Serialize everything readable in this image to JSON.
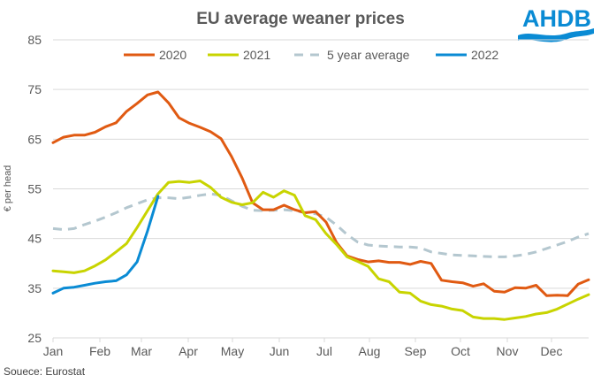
{
  "chart_data": {
    "type": "line",
    "title": "EU average weaner prices",
    "xlabel": "",
    "ylabel": "€ per head",
    "source": "Souece: Eurostat",
    "logo": "AHDB",
    "ylim": [
      25,
      85
    ],
    "yticks": [
      "25",
      "35",
      "45",
      "55",
      "65",
      "75",
      "85"
    ],
    "ytick_values": [
      25,
      35,
      45,
      55,
      65,
      75,
      85
    ],
    "grid": true,
    "legend_position": "top",
    "categories": [
      "Jan",
      "Feb",
      "Mar",
      "Apr",
      "May",
      "Jun",
      "Jul",
      "Aug",
      "Sep",
      "Oct",
      "Nov",
      "Dec"
    ],
    "weeks": 52,
    "series": [
      {
        "name": "2020",
        "color": "#E05A12",
        "dash": false,
        "values": [
          64.3,
          65.4,
          65.8,
          65.8,
          66.4,
          67.5,
          68.3,
          70.6,
          72.2,
          73.9,
          74.5,
          72.3,
          69.3,
          68.2,
          67.4,
          66.5,
          65.1,
          61.5,
          57.2,
          52.2,
          50.8,
          50.8,
          51.7,
          50.8,
          50.2,
          50.4,
          48.3,
          44.2,
          41.5,
          40.8,
          40.3,
          40.5,
          40.2,
          40.2,
          39.8,
          40.4,
          40.0,
          36.6,
          36.3,
          36.1,
          35.4,
          35.9,
          34.4,
          34.2,
          35.1,
          35.0,
          35.6,
          33.5,
          33.6,
          33.5,
          35.8,
          36.7
        ]
      },
      {
        "name": "2021",
        "color": "#C8D400",
        "dash": false,
        "values": [
          38.5,
          38.3,
          38.1,
          38.5,
          39.5,
          40.7,
          42.3,
          44.0,
          47.2,
          50.6,
          54.0,
          56.3,
          56.5,
          56.3,
          56.6,
          55.3,
          53.3,
          52.3,
          51.8,
          52.2,
          54.3,
          53.3,
          54.6,
          53.7,
          49.6,
          48.8,
          46.0,
          43.8,
          41.3,
          40.4,
          39.4,
          36.9,
          36.3,
          34.2,
          34.0,
          32.4,
          31.7,
          31.4,
          30.8,
          30.5,
          29.2,
          28.9,
          28.9,
          28.7,
          29.0,
          29.3,
          29.8,
          30.1,
          30.8,
          31.8,
          32.8,
          33.7
        ]
      },
      {
        "name": "5 year average",
        "color": "#B4C7CF",
        "dash": true,
        "values": [
          47.0,
          46.8,
          47.0,
          47.8,
          48.5,
          49.3,
          50.2,
          51.2,
          52.0,
          52.8,
          53.2,
          53.2,
          53.0,
          53.3,
          53.7,
          54.0,
          53.7,
          52.6,
          51.5,
          50.7,
          50.6,
          50.7,
          50.8,
          50.6,
          50.2,
          50.0,
          49.3,
          47.7,
          45.8,
          44.3,
          43.7,
          43.5,
          43.4,
          43.3,
          43.3,
          43.1,
          42.3,
          42.0,
          41.7,
          41.6,
          41.5,
          41.4,
          41.3,
          41.3,
          41.5,
          41.8,
          42.3,
          43.0,
          43.7,
          44.4,
          45.3,
          46.0
        ]
      },
      {
        "name": "2022",
        "color": "#0A8BD4",
        "dash": false,
        "values": [
          34.0,
          35.0,
          35.2,
          35.6,
          36.0,
          36.3,
          36.5,
          37.7,
          40.3,
          46.5,
          53.5
        ]
      }
    ]
  }
}
